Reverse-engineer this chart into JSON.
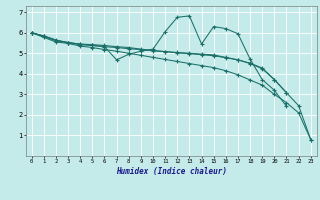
{
  "xlabel": "Humidex (Indice chaleur)",
  "bg_color": "#c5eaea",
  "line_color": "#1a7068",
  "xlim": [
    -0.5,
    23.5
  ],
  "ylim": [
    0,
    7.3
  ],
  "xtick_vals": [
    0,
    1,
    2,
    3,
    4,
    5,
    6,
    7,
    8,
    9,
    10,
    11,
    12,
    13,
    14,
    15,
    16,
    17,
    18,
    19,
    20,
    21,
    22,
    23
  ],
  "ytick_vals": [
    1,
    2,
    3,
    4,
    5,
    6,
    7
  ],
  "lines": [
    {
      "x": [
        0,
        1,
        2,
        3,
        4,
        5,
        6,
        7,
        8,
        9,
        10,
        11,
        12,
        13,
        14,
        15,
        16,
        17,
        18,
        19,
        20,
        21,
        22,
        23
      ],
      "y": [
        6.0,
        5.77,
        5.55,
        5.48,
        5.35,
        5.28,
        5.18,
        5.1,
        5.0,
        4.9,
        4.8,
        4.7,
        4.6,
        4.5,
        4.4,
        4.3,
        4.15,
        3.95,
        3.7,
        3.45,
        3.0,
        2.6,
        2.1,
        0.8
      ]
    },
    {
      "x": [
        0,
        1,
        2,
        3,
        4,
        5,
        6,
        7,
        8,
        9,
        10,
        11,
        12,
        13,
        14,
        15,
        16,
        17,
        18,
        19,
        20,
        21
      ],
      "y": [
        6.0,
        5.85,
        5.65,
        5.52,
        5.42,
        5.38,
        5.32,
        4.68,
        4.95,
        5.1,
        5.2,
        6.05,
        6.75,
        6.82,
        5.45,
        6.3,
        6.2,
        5.95,
        4.72,
        3.72,
        3.2,
        2.42
      ]
    },
    {
      "x": [
        0,
        1,
        2,
        3,
        4,
        5,
        6,
        7,
        8,
        9,
        10,
        11,
        12,
        13,
        14,
        15,
        16,
        17,
        18,
        19,
        20,
        21
      ],
      "y": [
        6.0,
        5.83,
        5.62,
        5.52,
        5.45,
        5.42,
        5.38,
        5.32,
        5.28,
        5.2,
        5.14,
        5.08,
        5.02,
        4.98,
        4.93,
        4.88,
        4.78,
        4.68,
        4.52,
        4.28,
        3.72,
        3.08
      ]
    },
    {
      "x": [
        0,
        1,
        2,
        3,
        4,
        5,
        6,
        7,
        8,
        9,
        10,
        11,
        12,
        13,
        14,
        15,
        16,
        17,
        18,
        19,
        20,
        21,
        22,
        23
      ],
      "y": [
        6.0,
        5.82,
        5.62,
        5.52,
        5.44,
        5.38,
        5.32,
        5.28,
        5.22,
        5.18,
        5.12,
        5.08,
        5.04,
        5.0,
        4.96,
        4.92,
        4.8,
        4.68,
        4.5,
        4.25,
        3.72,
        3.08,
        2.45,
        0.8
      ]
    }
  ]
}
